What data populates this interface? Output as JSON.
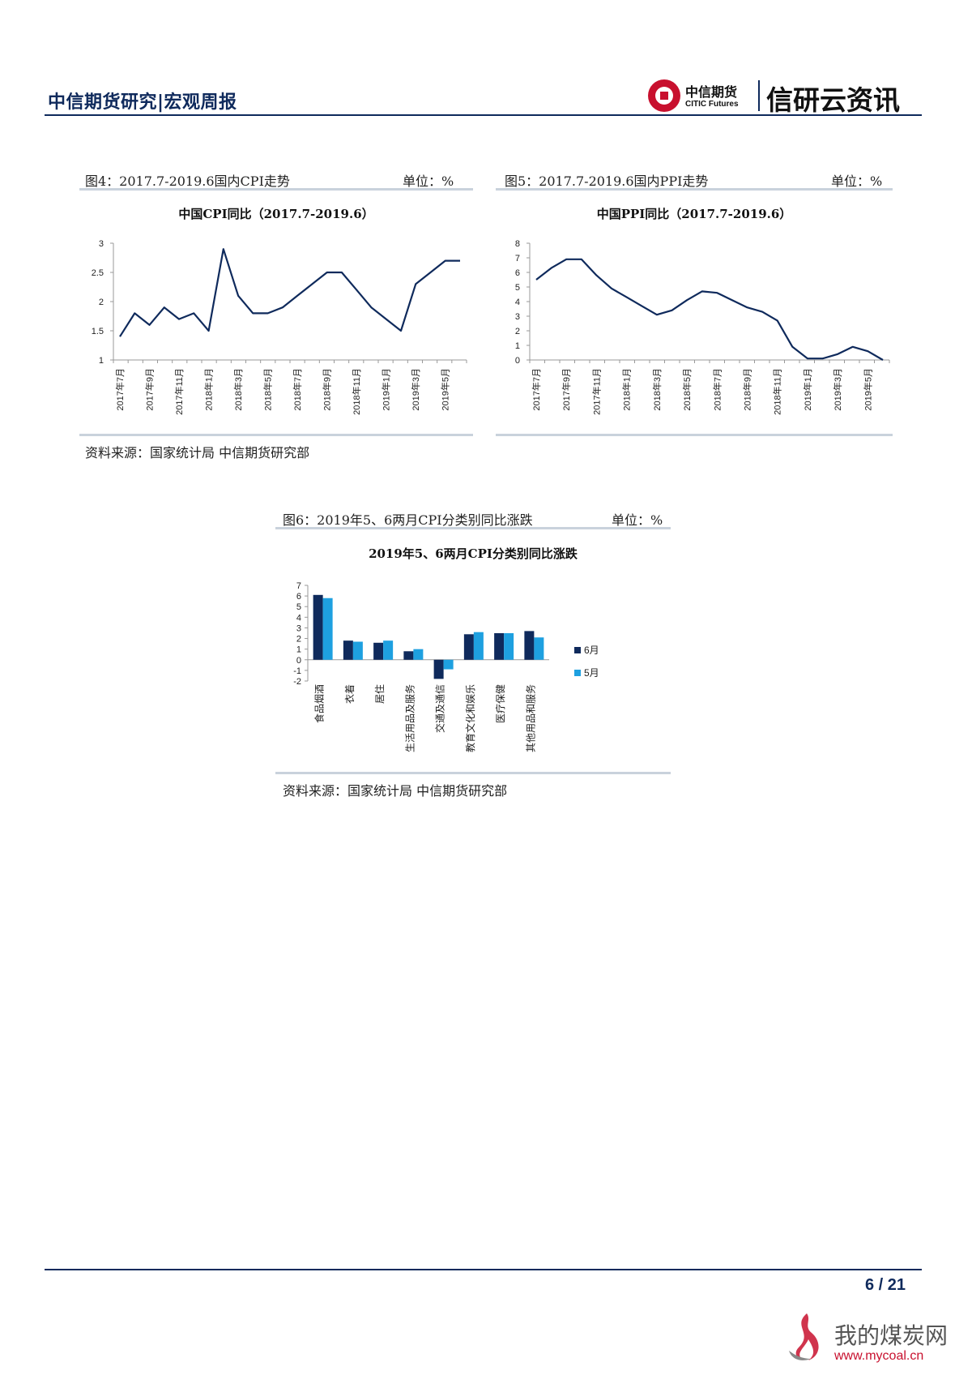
{
  "header": {
    "title": "中信期货研究|宏观周报",
    "logo_cn": "中信期货",
    "logo_en": "CITIC Futures",
    "brand": "信研云资讯"
  },
  "fig4": {
    "caption": "图4：2017.7-2019.6国内CPI走势",
    "unit": "单位：%",
    "source": "资料来源：国家统计局  中信期货研究部"
  },
  "fig5": {
    "caption": "图5：2017.7-2019.6国内PPI走势",
    "unit": "单位：%"
  },
  "fig6": {
    "caption": "图6：2019年5、6两月CPI分类别同比涨跌",
    "unit": "单位：%",
    "source": "资料来源：国家统计局  中信期货研究部"
  },
  "chart_data": [
    {
      "type": "line",
      "title": "中国CPI同比（2017.7-2019.6）",
      "x": [
        "2017年7月",
        "2017年8月",
        "2017年9月",
        "2017年10月",
        "2017年11月",
        "2017年12月",
        "2018年1月",
        "2018年2月",
        "2018年3月",
        "2018年4月",
        "2018年5月",
        "2018年6月",
        "2018年7月",
        "2018年8月",
        "2018年9月",
        "2018年10月",
        "2018年11月",
        "2018年12月",
        "2019年1月",
        "2019年2月",
        "2019年3月",
        "2019年4月",
        "2019年5月",
        "2019年6月"
      ],
      "tick_labels": [
        "2017年7月",
        "2017年9月",
        "2017年11月",
        "2018年1月",
        "2018年3月",
        "2018年5月",
        "2018年7月",
        "2018年9月",
        "2018年11月",
        "2019年1月",
        "2019年3月",
        "2019年5月"
      ],
      "y": [
        1.4,
        1.8,
        1.6,
        1.9,
        1.7,
        1.8,
        1.5,
        2.9,
        2.1,
        1.8,
        1.8,
        1.9,
        2.1,
        2.3,
        2.5,
        2.5,
        2.2,
        1.9,
        1.7,
        1.5,
        2.3,
        2.5,
        2.7,
        2.7
      ],
      "ylim": [
        1,
        3
      ],
      "yticks": [
        "1",
        "1.5",
        "2",
        "2.5",
        "3"
      ],
      "color": "#0f2a5c"
    },
    {
      "type": "line",
      "title": "中国PPI同比（2017.7-2019.6）",
      "x": [
        "2017年7月",
        "2017年8月",
        "2017年9月",
        "2017年10月",
        "2017年11月",
        "2017年12月",
        "2018年1月",
        "2018年2月",
        "2018年3月",
        "2018年4月",
        "2018年5月",
        "2018年6月",
        "2018年7月",
        "2018年8月",
        "2018年9月",
        "2018年10月",
        "2018年11月",
        "2018年12月",
        "2019年1月",
        "2019年2月",
        "2019年3月",
        "2019年4月",
        "2019年5月",
        "2019年6月"
      ],
      "tick_labels": [
        "2017年7月",
        "2017年9月",
        "2017年11月",
        "2018年1月",
        "2018年3月",
        "2018年5月",
        "2018年7月",
        "2018年9月",
        "2018年11月",
        "2019年1月",
        "2019年3月",
        "2019年5月"
      ],
      "y": [
        5.5,
        6.3,
        6.9,
        6.9,
        5.8,
        4.9,
        4.3,
        3.7,
        3.1,
        3.4,
        4.1,
        4.7,
        4.6,
        4.1,
        3.6,
        3.3,
        2.7,
        0.9,
        0.1,
        0.1,
        0.4,
        0.9,
        0.6,
        0.0
      ],
      "ylim": [
        0,
        8
      ],
      "yticks": [
        "0",
        "1",
        "2",
        "3",
        "4",
        "5",
        "6",
        "7",
        "8"
      ],
      "color": "#0f2a5c"
    },
    {
      "type": "bar",
      "title": "2019年5、6两月CPI分类别同比涨跌",
      "categories": [
        "食品烟酒",
        "衣着",
        "居住",
        "生活用品及服务",
        "交通及通信",
        "教育文化和娱乐",
        "医疗保健",
        "其他用品和服务"
      ],
      "series": [
        {
          "name": "6月",
          "values": [
            6.1,
            1.8,
            1.6,
            0.8,
            -1.8,
            2.4,
            2.5,
            2.7
          ],
          "color": "#0f2a5c"
        },
        {
          "name": "5月",
          "values": [
            5.8,
            1.7,
            1.8,
            1.0,
            -0.9,
            2.6,
            2.5,
            2.1
          ],
          "color": "#1ea0e0"
        }
      ],
      "ylim": [
        -2,
        7
      ],
      "yticks": [
        "-2",
        "-1",
        "0",
        "1",
        "2",
        "3",
        "4",
        "5",
        "6",
        "7"
      ],
      "legend": "right"
    }
  ],
  "footer": {
    "page": "6 / 21"
  },
  "watermark": {
    "cn": "我的煤炭网",
    "en": "www.mycoal.cn"
  }
}
